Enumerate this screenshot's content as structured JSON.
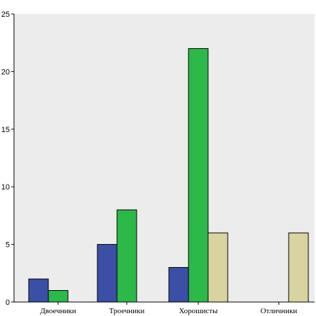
{
  "chart_data": {
    "type": "bar",
    "title": "",
    "xlabel": "",
    "ylabel": "",
    "categories": [
      "Двоечники",
      "Троечники",
      "Хорошисты",
      "Отличники"
    ],
    "series": [
      {
        "color": "#3b4fa6",
        "values": [
          2,
          5,
          3,
          0
        ]
      },
      {
        "color": "#2db84a",
        "values": [
          1,
          8,
          22,
          0
        ]
      },
      {
        "color": "#d8d3a1",
        "values": [
          0,
          0,
          6,
          6
        ]
      }
    ],
    "ylim": [
      0,
      25
    ],
    "yticks": [
      0,
      5,
      10,
      15,
      20,
      25
    ],
    "grid": false,
    "plot_background": "#ececec"
  }
}
